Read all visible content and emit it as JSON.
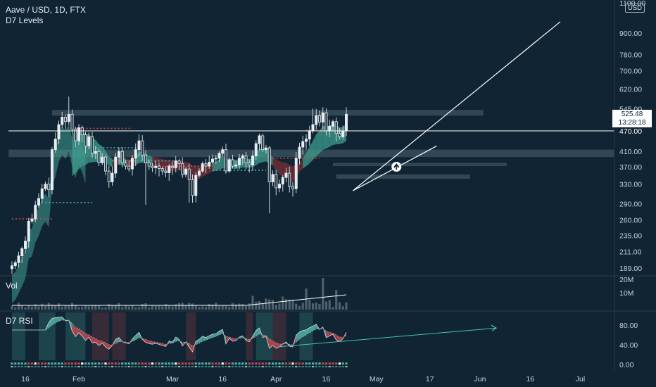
{
  "header": {
    "symbol_line": "Aave / USD, 1D, FTX",
    "indicator_line": "D7 Levels"
  },
  "volume_pane": {
    "label": "Vol"
  },
  "rsi_pane": {
    "label": "D7 RSI"
  },
  "price_axis": {
    "unit": "USD",
    "last_price": "525.48",
    "countdown": "13:28:18",
    "hline_label": "470.00"
  },
  "colors": {
    "background": "#102433",
    "bull": "#4fb3a3",
    "bear": "#c2464f",
    "cloud_bull": "#3f9c8e",
    "cloud_bear": "#7a2e36",
    "zone": "#3d5362",
    "trendline": "#ffffff",
    "rsi_projection": "#43c4b0"
  },
  "icons": {
    "signal_marker": "arrow-up-circle-icon"
  },
  "chart_data": [
    {
      "type": "candlestick",
      "title": "Aave / USD, 1D, FTX",
      "y_scale": "log",
      "ylim": [
        180,
        1100
      ],
      "y_ticks": [
        "1100.00",
        "900.00",
        "780.00",
        "700.00",
        "620.00",
        "545.00",
        "470.00",
        "410.00",
        "370.00",
        "330.00",
        "290.00",
        "260.00",
        "235.00",
        "211.00",
        "189.00"
      ],
      "x_ticks": [
        "16",
        "Feb",
        "Mar",
        "16",
        "Apr",
        "16",
        "May",
        "17",
        "Jun",
        "16",
        "Jul"
      ],
      "x_tick_dates": [
        "2021-01-16",
        "2021-02-01",
        "2021-03-01",
        "2021-03-16",
        "2021-04-01",
        "2021-04-16",
        "2021-05-01",
        "2021-05-17",
        "2021-06-01",
        "2021-06-16",
        "2021-07-01"
      ],
      "last_price": 525.48,
      "horizontal_line": 470,
      "zones": [
        {
          "low": 520,
          "high": 540,
          "from": "2021-01-24",
          "to": "2021-06-02"
        },
        {
          "low": 395,
          "high": 415,
          "from": "2021-01-11",
          "to": "2021-07-19"
        },
        {
          "low": 372,
          "high": 380,
          "from": "2021-04-18",
          "to": "2021-06-09"
        },
        {
          "low": 342,
          "high": 352,
          "from": "2021-04-19",
          "to": "2021-05-29"
        }
      ],
      "trendlines": [
        {
          "from": [
            "2021-04-24",
            316
          ],
          "to": [
            "2021-05-19",
            425
          ]
        },
        {
          "from": [
            "2021-04-24",
            316
          ],
          "to": [
            "2021-06-25",
            970
          ]
        }
      ],
      "closes": [
        192,
        196,
        205,
        215,
        226,
        258,
        262,
        287,
        300,
        320,
        330,
        318,
        415,
        445,
        490,
        515,
        500,
        525,
        475,
        440,
        480,
        458,
        425,
        452,
        405,
        410,
        380,
        395,
        360,
        335,
        355,
        395,
        410,
        380,
        372,
        365,
        392,
        415,
        440,
        400,
        380,
        372,
        368,
        372,
        366,
        360,
        356,
        372,
        368,
        385,
        378,
        352,
        365,
        340,
        306,
        350,
        360,
        378,
        372,
        382,
        390,
        392,
        405,
        415,
        360,
        388,
        372,
        375,
        392,
        398,
        380,
        375,
        398,
        432,
        455,
        415,
        420,
        335,
        352,
        322,
        330,
        345,
        355,
        325,
        320,
        392,
        422,
        438,
        445,
        470,
        490,
        520,
        498,
        530,
        470,
        485,
        500,
        462,
        452,
        470,
        525
      ]
    },
    {
      "type": "bar",
      "title": "Vol",
      "y_ticks": [
        "20M",
        "10M"
      ]
    },
    {
      "type": "line",
      "title": "D7 RSI",
      "y_ticks": [
        "80.00",
        "40.00",
        "0.00"
      ],
      "ylim": [
        0,
        100
      ]
    }
  ]
}
